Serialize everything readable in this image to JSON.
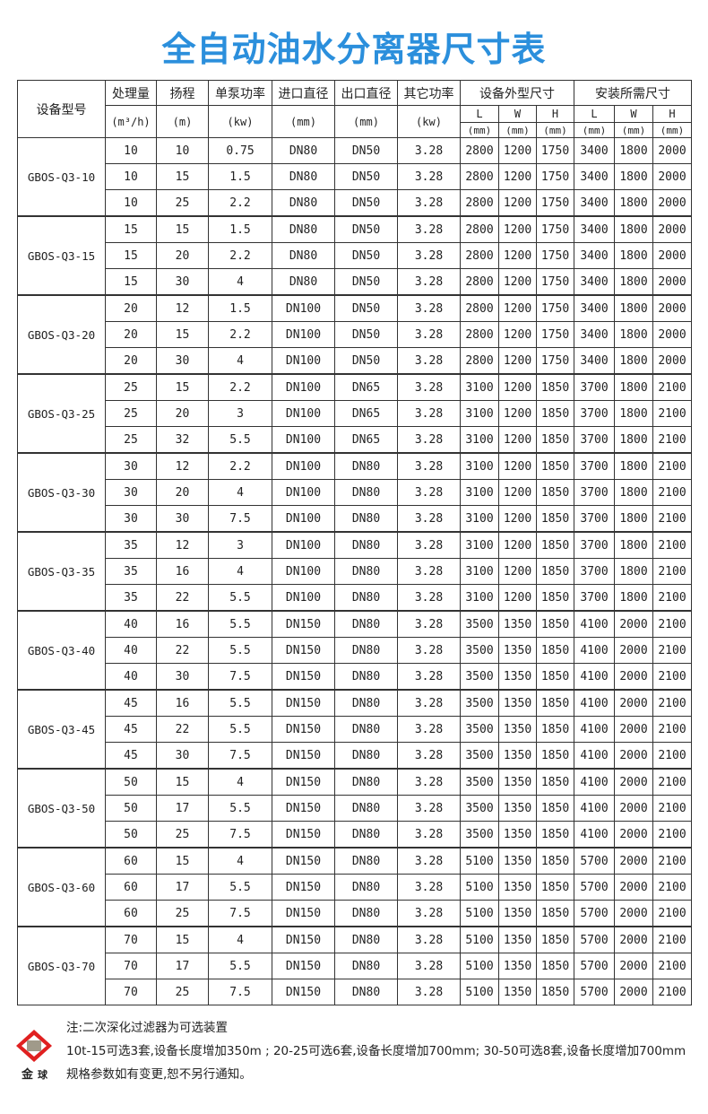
{
  "title": "全自动油水分离器尺寸表",
  "header": {
    "model": "设备型号",
    "flow": "处理量",
    "flow_unit": "(m³/h)",
    "head": "扬程",
    "head_unit": "(m)",
    "power": "单泵功率",
    "power_unit": "(kw)",
    "inlet": "进口直径",
    "inlet_unit": "(mm)",
    "outlet": "出口直径",
    "outlet_unit": "(mm)",
    "other": "其它功率",
    "other_unit": "(kw)",
    "equip_size": "设备外型尺寸",
    "install_size": "安装所需尺寸",
    "dims": [
      "L",
      "W",
      "H",
      "L",
      "W",
      "H"
    ],
    "dim_unit": "(mm)"
  },
  "groups": [
    {
      "model": "GBOS-Q3-10",
      "rows": [
        [
          "10",
          "10",
          "0.75",
          "DN80",
          "DN50",
          "3.28",
          "2800",
          "1200",
          "1750",
          "3400",
          "1800",
          "2000"
        ],
        [
          "10",
          "15",
          "1.5",
          "DN80",
          "DN50",
          "3.28",
          "2800",
          "1200",
          "1750",
          "3400",
          "1800",
          "2000"
        ],
        [
          "10",
          "25",
          "2.2",
          "DN80",
          "DN50",
          "3.28",
          "2800",
          "1200",
          "1750",
          "3400",
          "1800",
          "2000"
        ]
      ]
    },
    {
      "model": "GBOS-Q3-15",
      "rows": [
        [
          "15",
          "15",
          "1.5",
          "DN80",
          "DN50",
          "3.28",
          "2800",
          "1200",
          "1750",
          "3400",
          "1800",
          "2000"
        ],
        [
          "15",
          "20",
          "2.2",
          "DN80",
          "DN50",
          "3.28",
          "2800",
          "1200",
          "1750",
          "3400",
          "1800",
          "2000"
        ],
        [
          "15",
          "30",
          "4",
          "DN80",
          "DN50",
          "3.28",
          "2800",
          "1200",
          "1750",
          "3400",
          "1800",
          "2000"
        ]
      ]
    },
    {
      "model": "GBOS-Q3-20",
      "rows": [
        [
          "20",
          "12",
          "1.5",
          "DN100",
          "DN50",
          "3.28",
          "2800",
          "1200",
          "1750",
          "3400",
          "1800",
          "2000"
        ],
        [
          "20",
          "15",
          "2.2",
          "DN100",
          "DN50",
          "3.28",
          "2800",
          "1200",
          "1750",
          "3400",
          "1800",
          "2000"
        ],
        [
          "20",
          "30",
          "4",
          "DN100",
          "DN50",
          "3.28",
          "2800",
          "1200",
          "1750",
          "3400",
          "1800",
          "2000"
        ]
      ]
    },
    {
      "model": "GBOS-Q3-25",
      "rows": [
        [
          "25",
          "15",
          "2.2",
          "DN100",
          "DN65",
          "3.28",
          "3100",
          "1200",
          "1850",
          "3700",
          "1800",
          "2100"
        ],
        [
          "25",
          "20",
          "3",
          "DN100",
          "DN65",
          "3.28",
          "3100",
          "1200",
          "1850",
          "3700",
          "1800",
          "2100"
        ],
        [
          "25",
          "32",
          "5.5",
          "DN100",
          "DN65",
          "3.28",
          "3100",
          "1200",
          "1850",
          "3700",
          "1800",
          "2100"
        ]
      ]
    },
    {
      "model": "GBOS-Q3-30",
      "rows": [
        [
          "30",
          "12",
          "2.2",
          "DN100",
          "DN80",
          "3.28",
          "3100",
          "1200",
          "1850",
          "3700",
          "1800",
          "2100"
        ],
        [
          "30",
          "20",
          "4",
          "DN100",
          "DN80",
          "3.28",
          "3100",
          "1200",
          "1850",
          "3700",
          "1800",
          "2100"
        ],
        [
          "30",
          "30",
          "7.5",
          "DN100",
          "DN80",
          "3.28",
          "3100",
          "1200",
          "1850",
          "3700",
          "1800",
          "2100"
        ]
      ]
    },
    {
      "model": "GBOS-Q3-35",
      "rows": [
        [
          "35",
          "12",
          "3",
          "DN100",
          "DN80",
          "3.28",
          "3100",
          "1200",
          "1850",
          "3700",
          "1800",
          "2100"
        ],
        [
          "35",
          "16",
          "4",
          "DN100",
          "DN80",
          "3.28",
          "3100",
          "1200",
          "1850",
          "3700",
          "1800",
          "2100"
        ],
        [
          "35",
          "22",
          "5.5",
          "DN100",
          "DN80",
          "3.28",
          "3100",
          "1200",
          "1850",
          "3700",
          "1800",
          "2100"
        ]
      ]
    },
    {
      "model": "GBOS-Q3-40",
      "rows": [
        [
          "40",
          "16",
          "5.5",
          "DN150",
          "DN80",
          "3.28",
          "3500",
          "1350",
          "1850",
          "4100",
          "2000",
          "2100"
        ],
        [
          "40",
          "22",
          "5.5",
          "DN150",
          "DN80",
          "3.28",
          "3500",
          "1350",
          "1850",
          "4100",
          "2000",
          "2100"
        ],
        [
          "40",
          "30",
          "7.5",
          "DN150",
          "DN80",
          "3.28",
          "3500",
          "1350",
          "1850",
          "4100",
          "2000",
          "2100"
        ]
      ]
    },
    {
      "model": "GBOS-Q3-45",
      "rows": [
        [
          "45",
          "16",
          "5.5",
          "DN150",
          "DN80",
          "3.28",
          "3500",
          "1350",
          "1850",
          "4100",
          "2000",
          "2100"
        ],
        [
          "45",
          "22",
          "5.5",
          "DN150",
          "DN80",
          "3.28",
          "3500",
          "1350",
          "1850",
          "4100",
          "2000",
          "2100"
        ],
        [
          "45",
          "30",
          "7.5",
          "DN150",
          "DN80",
          "3.28",
          "3500",
          "1350",
          "1850",
          "4100",
          "2000",
          "2100"
        ]
      ]
    },
    {
      "model": "GBOS-Q3-50",
      "rows": [
        [
          "50",
          "15",
          "4",
          "DN150",
          "DN80",
          "3.28",
          "3500",
          "1350",
          "1850",
          "4100",
          "2000",
          "2100"
        ],
        [
          "50",
          "17",
          "5.5",
          "DN150",
          "DN80",
          "3.28",
          "3500",
          "1350",
          "1850",
          "4100",
          "2000",
          "2100"
        ],
        [
          "50",
          "25",
          "7.5",
          "DN150",
          "DN80",
          "3.28",
          "3500",
          "1350",
          "1850",
          "4100",
          "2000",
          "2100"
        ]
      ]
    },
    {
      "model": "GBOS-Q3-60",
      "rows": [
        [
          "60",
          "15",
          "4",
          "DN150",
          "DN80",
          "3.28",
          "5100",
          "1350",
          "1850",
          "5700",
          "2000",
          "2100"
        ],
        [
          "60",
          "17",
          "5.5",
          "DN150",
          "DN80",
          "3.28",
          "5100",
          "1350",
          "1850",
          "5700",
          "2000",
          "2100"
        ],
        [
          "60",
          "25",
          "7.5",
          "DN150",
          "DN80",
          "3.28",
          "5100",
          "1350",
          "1850",
          "5700",
          "2000",
          "2100"
        ]
      ]
    },
    {
      "model": "GBOS-Q3-70",
      "rows": [
        [
          "70",
          "15",
          "4",
          "DN150",
          "DN80",
          "3.28",
          "5100",
          "1350",
          "1850",
          "5700",
          "2000",
          "2100"
        ],
        [
          "70",
          "17",
          "5.5",
          "DN150",
          "DN80",
          "3.28",
          "5100",
          "1350",
          "1850",
          "5700",
          "2000",
          "2100"
        ],
        [
          "70",
          "25",
          "7.5",
          "DN150",
          "DN80",
          "3.28",
          "5100",
          "1350",
          "1850",
          "5700",
          "2000",
          "2100"
        ]
      ]
    }
  ],
  "notes": [
    "注:二次深化过滤器为可选装置",
    "10t-15可选3套,设备长度增加350m ; 20-25可选6套,设备长度增加700mm; 30-50可选8套,设备长度增加700mm",
    "规格参数如有变更,恕不另行通知。"
  ],
  "logo": {
    "text": "金球",
    "colors": {
      "red": "#e02020",
      "gray": "#a09a8a"
    }
  },
  "colors": {
    "title": "#2b8fdc"
  }
}
